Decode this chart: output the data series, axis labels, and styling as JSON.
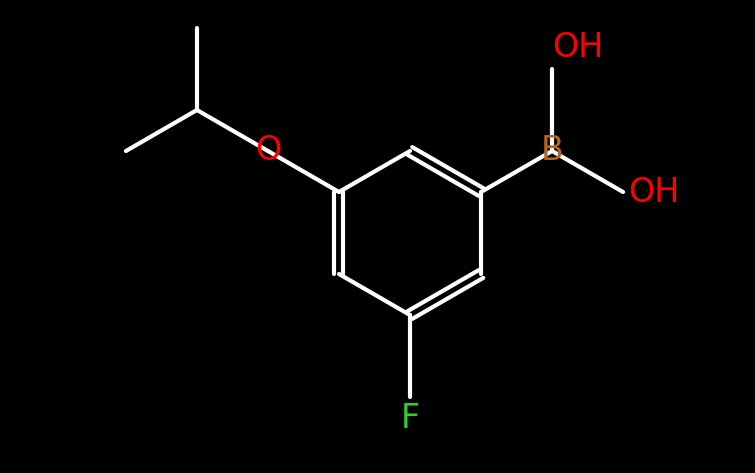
{
  "background_color": "#000000",
  "bond_color": "#ffffff",
  "bond_width": 3.0,
  "label_B": {
    "text": "B",
    "color": "#b5651d",
    "fontsize": 24
  },
  "label_OH1": {
    "text": "OH",
    "color": "#ff0000",
    "fontsize": 24
  },
  "label_OH2": {
    "text": "OH",
    "color": "#ff0000",
    "fontsize": 24
  },
  "label_O": {
    "text": "O",
    "color": "#ff0000",
    "fontsize": 24
  },
  "label_F": {
    "text": "F",
    "color": "#33cc33",
    "fontsize": 24
  },
  "figsize": [
    7.55,
    4.73
  ],
  "dpi": 100,
  "xlim": [
    0,
    755
  ],
  "ylim": [
    0,
    473
  ]
}
